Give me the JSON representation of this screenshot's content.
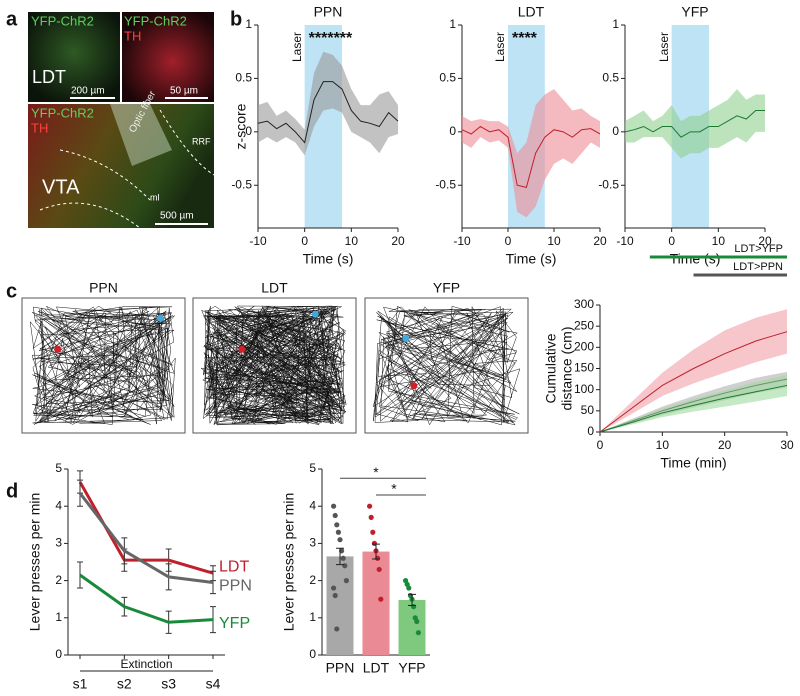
{
  "panel_letters": [
    "a",
    "b",
    "c",
    "d"
  ],
  "panel_a": {
    "top_left": {
      "label": "YFP-ChR2",
      "region": "LDT",
      "scale": "200 µm"
    },
    "top_right": {
      "label": "YFP-ChR2",
      "label2": "TH",
      "scale": "50 µm"
    },
    "bottom": {
      "label": "YFP-ChR2",
      "label2": "TH",
      "fiber": "Optic fiber",
      "rrf": "RRF",
      "region": "VTA",
      "ml": "ml",
      "scale": "500 µm"
    }
  },
  "panel_c_titles": [
    "PPN",
    "LDT",
    "YFP"
  ],
  "chart_data": [
    {
      "type": "line",
      "title": "PPN",
      "ylabel": "z-score",
      "xlabel": "Time (s)",
      "shade": [
        0,
        8
      ],
      "shade_label": "Laser",
      "annotation": "*******",
      "band_color": "#9a9a9a",
      "shade_color": "#bde3f5",
      "x": [
        -10,
        -8,
        -6,
        -4,
        -2,
        0,
        2,
        4,
        6,
        8,
        10,
        12,
        14,
        16,
        18,
        20
      ],
      "xlim": [
        -10,
        20
      ],
      "xticks": [
        -10,
        0,
        10,
        20
      ],
      "ylim": [
        -0.9,
        1
      ],
      "yticks": [
        -0.5,
        0,
        0.5,
        1
      ],
      "series": [
        {
          "color": "#222222",
          "values": [
            0.08,
            0.1,
            0.03,
            0.08,
            0.0,
            -0.1,
            0.3,
            0.47,
            0.47,
            0.4,
            0.2,
            0.1,
            0.08,
            0.05,
            0.18,
            0.1
          ],
          "upper": [
            0.25,
            0.28,
            0.15,
            0.2,
            0.12,
            0.02,
            0.55,
            0.75,
            0.72,
            0.62,
            0.4,
            0.25,
            0.25,
            0.35,
            0.38,
            0.25
          ],
          "lower": [
            -0.1,
            -0.05,
            -0.1,
            -0.05,
            -0.1,
            -0.22,
            0.05,
            0.2,
            0.22,
            0.18,
            0.0,
            -0.05,
            -0.1,
            -0.2,
            -0.05,
            -0.02
          ]
        }
      ]
    },
    {
      "type": "line",
      "title": "LDT",
      "xlabel": "Time (s)",
      "shade": [
        0,
        8
      ],
      "shade_label": "Laser",
      "annotation": "****",
      "band_color": "#ee8c94",
      "shade_color": "#bde3f5",
      "x": [
        -10,
        -8,
        -6,
        -4,
        -2,
        0,
        2,
        4,
        6,
        8,
        10,
        12,
        14,
        16,
        18,
        20
      ],
      "xlim": [
        -10,
        20
      ],
      "xticks": [
        -10,
        0,
        10,
        20
      ],
      "ylim": [
        -0.9,
        1
      ],
      "yticks": [
        -0.5,
        0,
        0.5,
        1
      ],
      "series": [
        {
          "color": "#c0202c",
          "values": [
            0.02,
            -0.02,
            0.05,
            0.0,
            0.02,
            -0.05,
            -0.5,
            -0.52,
            -0.2,
            -0.05,
            0.02,
            0.0,
            -0.05,
            0.02,
            0.03,
            -0.02
          ],
          "upper": [
            0.15,
            0.1,
            0.12,
            0.1,
            0.1,
            0.05,
            -0.2,
            -0.1,
            0.25,
            0.35,
            0.4,
            0.3,
            0.2,
            0.22,
            0.15,
            0.1
          ],
          "lower": [
            -0.1,
            -0.15,
            -0.05,
            -0.1,
            -0.08,
            -0.15,
            -0.75,
            -0.8,
            -0.7,
            -0.45,
            -0.3,
            -0.25,
            -0.3,
            -0.2,
            -0.1,
            -0.15
          ]
        }
      ]
    },
    {
      "type": "line",
      "title": "YFP",
      "xlabel": "Time (s)",
      "shade": [
        0,
        8
      ],
      "shade_label": "Laser",
      "band_color": "#8fd08f",
      "shade_color": "#bde3f5",
      "x": [
        -10,
        -8,
        -6,
        -4,
        -2,
        0,
        2,
        4,
        6,
        8,
        10,
        12,
        14,
        16,
        18,
        20
      ],
      "xlim": [
        -10,
        20
      ],
      "xticks": [
        -10,
        0,
        10,
        20
      ],
      "ylim": [
        -0.9,
        1
      ],
      "yticks": [
        -0.5,
        0,
        0.5,
        1
      ],
      "series": [
        {
          "color": "#1a7a30",
          "values": [
            0.0,
            0.02,
            0.05,
            0.0,
            0.05,
            0.05,
            -0.05,
            0.0,
            0.0,
            0.05,
            0.05,
            0.1,
            0.15,
            0.12,
            0.2,
            0.2
          ],
          "upper": [
            0.1,
            0.15,
            0.2,
            0.1,
            0.15,
            0.25,
            0.1,
            0.15,
            0.15,
            0.2,
            0.25,
            0.3,
            0.4,
            0.3,
            0.35,
            0.35
          ],
          "lower": [
            -0.1,
            -0.1,
            -0.05,
            -0.05,
            -0.05,
            -0.15,
            -0.25,
            -0.2,
            -0.2,
            -0.15,
            -0.15,
            -0.1,
            -0.05,
            -0.1,
            0.0,
            0.0
          ]
        }
      ]
    },
    {
      "type": "line",
      "ylabel": [
        "Cumulative",
        "distance (cm)"
      ],
      "xlabel": "Time (min)",
      "x": [
        0,
        5,
        10,
        15,
        20,
        25,
        30
      ],
      "xlim": [
        0,
        30
      ],
      "xticks": [
        0,
        10,
        20,
        30
      ],
      "ylim": [
        0,
        300
      ],
      "yticks": [
        0,
        50,
        100,
        150,
        200,
        250,
        300
      ],
      "sig_bars": [
        {
          "label": "LDT>YFP",
          "range": [
            8,
            30
          ],
          "color": "#1a8a3a"
        },
        {
          "label": "LDT>PPN",
          "range": [
            15,
            30
          ],
          "color": "#555555"
        }
      ],
      "series": [
        {
          "color": "#c0202c",
          "band_color": "#f0a0a8",
          "values": [
            0,
            55,
            110,
            150,
            185,
            215,
            237
          ],
          "upper": [
            0,
            70,
            140,
            195,
            240,
            270,
            290
          ],
          "lower": [
            0,
            42,
            85,
            115,
            140,
            165,
            185
          ]
        },
        {
          "color": "#222222",
          "band_color": "#b0b0b0",
          "values": [
            0,
            25,
            50,
            72,
            92,
            110,
            125
          ],
          "upper": [
            0,
            30,
            60,
            85,
            108,
            128,
            142
          ],
          "lower": [
            0,
            20,
            40,
            58,
            75,
            92,
            105
          ]
        },
        {
          "color": "#1a7a30",
          "band_color": "#9fd89f",
          "values": [
            0,
            22,
            45,
            63,
            80,
            95,
            110
          ],
          "upper": [
            0,
            28,
            55,
            78,
            98,
            118,
            135
          ],
          "lower": [
            0,
            17,
            35,
            48,
            60,
            72,
            85
          ]
        }
      ]
    },
    {
      "type": "errorline",
      "ylabel": "Lever presses per min",
      "xgroup_label": "Extinction",
      "categories": [
        "s1",
        "s2",
        "s3",
        "s4"
      ],
      "ylim": [
        0,
        5
      ],
      "yticks": [
        0,
        1,
        2,
        3,
        4,
        5
      ],
      "series": [
        {
          "name": "LDT",
          "color": "#c0202c",
          "values": [
            4.65,
            2.55,
            2.55,
            2.2
          ],
          "errors": [
            0.3,
            0.3,
            0.3,
            0.2
          ]
        },
        {
          "name": "PPN",
          "color": "#666666",
          "values": [
            4.35,
            2.8,
            2.1,
            1.95
          ],
          "errors": [
            0.35,
            0.35,
            0.35,
            0.3
          ]
        },
        {
          "name": "YFP",
          "color": "#1a8a3a",
          "values": [
            2.15,
            1.3,
            0.88,
            0.95
          ],
          "errors": [
            0.35,
            0.25,
            0.3,
            0.35
          ]
        }
      ]
    },
    {
      "type": "bar",
      "ylabel": "Lever presses per min",
      "categories": [
        "PPN",
        "LDT",
        "YFP"
      ],
      "values": [
        2.65,
        2.78,
        1.48
      ],
      "errors": [
        0.22,
        0.2,
        0.15
      ],
      "colors": [
        "#a8a8a8",
        "#e98a94",
        "#7fc97f"
      ],
      "point_colors": [
        "#555555",
        "#c0202c",
        "#1a8a3a"
      ],
      "ylim": [
        0,
        5
      ],
      "yticks": [
        0,
        1,
        2,
        3,
        4,
        5
      ],
      "points": [
        [
          4.0,
          3.75,
          3.5,
          3.3,
          3.1,
          2.8,
          2.6,
          2.4,
          2.0,
          1.8,
          1.6,
          0.7
        ],
        [
          4.0,
          3.7,
          3.3,
          3.0,
          2.8,
          2.6,
          2.3,
          1.5
        ],
        [
          2.0,
          1.9,
          1.8,
          1.6,
          1.5,
          1.3,
          1.0,
          0.9,
          0.6
        ]
      ],
      "significance": [
        {
          "from": 0,
          "to": 2,
          "y": 4.75,
          "label": "*"
        },
        {
          "from": 1,
          "to": 2,
          "y": 4.3,
          "label": "*"
        }
      ]
    }
  ]
}
